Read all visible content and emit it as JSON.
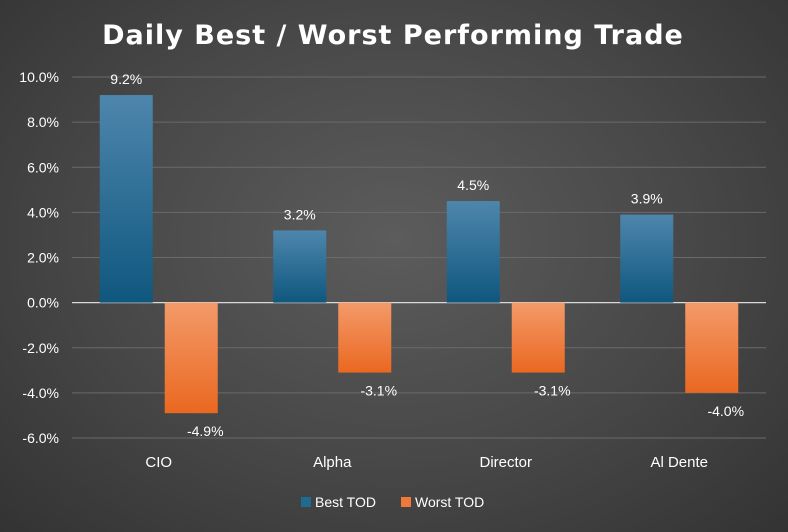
{
  "chart_data": {
    "type": "bar",
    "title": "Daily Best / Worst Performing Trade",
    "categories": [
      "CIO",
      "Alpha",
      "Director",
      "Al Dente"
    ],
    "series": [
      {
        "name": "Best TOD",
        "values": [
          9.2,
          3.2,
          4.5,
          3.9
        ],
        "labels": [
          "9.2%",
          "3.2%",
          "4.5%",
          "3.9%"
        ],
        "color": "#1f6a93"
      },
      {
        "name": "Worst TOD",
        "values": [
          -4.9,
          -3.1,
          -3.1,
          -4.0
        ],
        "labels": [
          "-4.9%",
          "-3.1%",
          "-3.1%",
          "-4.0%"
        ],
        "color": "#f0793a"
      }
    ],
    "yticks": [
      10,
      8,
      6,
      4,
      2,
      0,
      -2,
      -4,
      -6
    ],
    "ytick_labels": [
      "10.0%",
      "8.0%",
      "6.0%",
      "4.0%",
      "2.0%",
      "0.0%",
      "-2.0%",
      "-4.0%",
      "-6.0%"
    ],
    "ylim": [
      -6,
      10
    ],
    "grid": true,
    "legend": "bottom"
  }
}
